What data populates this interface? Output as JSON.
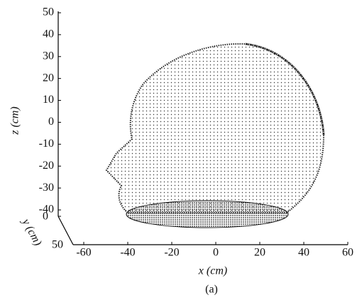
{
  "chart_data": {
    "type": "scatter3d",
    "xlabel": "x (cm)",
    "ylabel": "y (cm)",
    "zlabel": "z (cm)",
    "caption": "(a)",
    "xlim": [
      -60,
      60
    ],
    "xticks": [
      -60,
      -40,
      -20,
      0,
      20,
      40,
      60
    ],
    "ylim": [
      0,
      50
    ],
    "yticks": [
      0,
      50
    ],
    "zlim": [
      -40,
      50
    ],
    "zticks": [
      -40,
      -30,
      -20,
      -10,
      0,
      10,
      20,
      30,
      40,
      50
    ],
    "color": "#222222"
  }
}
